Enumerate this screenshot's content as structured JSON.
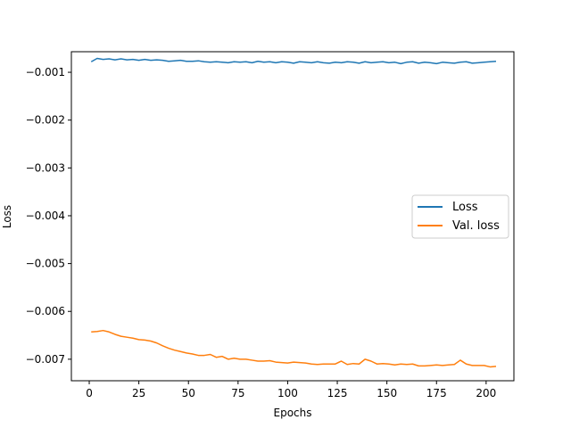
{
  "chart_data": {
    "type": "line",
    "title": "",
    "xlabel": "Epochs",
    "ylabel": "Loss",
    "xlim": [
      -9,
      214
    ],
    "ylim": [
      -0.00745,
      -0.00057
    ],
    "xticks": [
      0,
      25,
      50,
      75,
      100,
      125,
      150,
      175,
      200
    ],
    "xtick_labels": [
      "0",
      "25",
      "50",
      "75",
      "100",
      "125",
      "150",
      "175",
      "200"
    ],
    "yticks": [
      -0.001,
      -0.002,
      -0.003,
      -0.004,
      -0.005,
      -0.006,
      -0.007
    ],
    "ytick_labels": [
      "−0.001",
      "−0.002",
      "−0.003",
      "−0.004",
      "−0.005",
      "−0.006",
      "−0.007"
    ],
    "grid": false,
    "legend_position": "center-right",
    "series": [
      {
        "name": "Loss",
        "color": "#1f77b4",
        "x": [
          1,
          4,
          7,
          10,
          13,
          16,
          19,
          22,
          25,
          28,
          31,
          34,
          37,
          40,
          43,
          46,
          49,
          52,
          55,
          58,
          61,
          64,
          67,
          70,
          73,
          76,
          79,
          82,
          85,
          88,
          91,
          94,
          97,
          100,
          103,
          106,
          109,
          112,
          115,
          118,
          121,
          124,
          127,
          130,
          133,
          136,
          139,
          142,
          145,
          148,
          151,
          154,
          157,
          160,
          163,
          166,
          169,
          172,
          175,
          178,
          181,
          184,
          187,
          190,
          193,
          196,
          199,
          202,
          205
        ],
        "values": [
          -0.00078,
          -0.00071,
          -0.00073,
          -0.00072,
          -0.00074,
          -0.00072,
          -0.00074,
          -0.00073,
          -0.00075,
          -0.00073,
          -0.00075,
          -0.00074,
          -0.00075,
          -0.00077,
          -0.00076,
          -0.00075,
          -0.00077,
          -0.00077,
          -0.00076,
          -0.00078,
          -0.00079,
          -0.00078,
          -0.00079,
          -0.0008,
          -0.00078,
          -0.00079,
          -0.00078,
          -0.0008,
          -0.00077,
          -0.00079,
          -0.00078,
          -0.0008,
          -0.00078,
          -0.00079,
          -0.00081,
          -0.00078,
          -0.00079,
          -0.0008,
          -0.00078,
          -0.0008,
          -0.00081,
          -0.00079,
          -0.0008,
          -0.00078,
          -0.00079,
          -0.00081,
          -0.00078,
          -0.0008,
          -0.00079,
          -0.00078,
          -0.0008,
          -0.00079,
          -0.00082,
          -0.00079,
          -0.00078,
          -0.00081,
          -0.00079,
          -0.0008,
          -0.00082,
          -0.00079,
          -0.0008,
          -0.00081,
          -0.00079,
          -0.00078,
          -0.00081,
          -0.0008,
          -0.00079,
          -0.00078,
          -0.00077
        ]
      },
      {
        "name": "Val. loss",
        "color": "#ff7f0e",
        "x": [
          1,
          4,
          7,
          10,
          13,
          16,
          19,
          22,
          25,
          28,
          31,
          34,
          37,
          40,
          43,
          46,
          49,
          52,
          55,
          58,
          61,
          64,
          67,
          70,
          73,
          76,
          79,
          82,
          85,
          88,
          91,
          94,
          97,
          100,
          103,
          106,
          109,
          112,
          115,
          118,
          121,
          124,
          127,
          130,
          133,
          136,
          139,
          142,
          145,
          148,
          151,
          154,
          157,
          160,
          163,
          166,
          169,
          172,
          175,
          178,
          181,
          184,
          187,
          190,
          193,
          196,
          199,
          202,
          205
        ],
        "values": [
          -0.00643,
          -0.00642,
          -0.0064,
          -0.00643,
          -0.00648,
          -0.00652,
          -0.00654,
          -0.00656,
          -0.00659,
          -0.0066,
          -0.00662,
          -0.00666,
          -0.00672,
          -0.00677,
          -0.00681,
          -0.00684,
          -0.00687,
          -0.00689,
          -0.00692,
          -0.00692,
          -0.0069,
          -0.00696,
          -0.00694,
          -0.007,
          -0.00698,
          -0.007,
          -0.007,
          -0.00702,
          -0.00704,
          -0.00704,
          -0.00703,
          -0.00706,
          -0.00707,
          -0.00708,
          -0.00706,
          -0.00707,
          -0.00708,
          -0.0071,
          -0.00711,
          -0.0071,
          -0.0071,
          -0.0071,
          -0.00704,
          -0.00711,
          -0.00709,
          -0.0071,
          -0.007,
          -0.00704,
          -0.0071,
          -0.00709,
          -0.0071,
          -0.00712,
          -0.0071,
          -0.00711,
          -0.0071,
          -0.00714,
          -0.00714,
          -0.00713,
          -0.00712,
          -0.00713,
          -0.00712,
          -0.00711,
          -0.00702,
          -0.0071,
          -0.00713,
          -0.00713,
          -0.00713,
          -0.00716,
          -0.00715
        ]
      }
    ]
  }
}
